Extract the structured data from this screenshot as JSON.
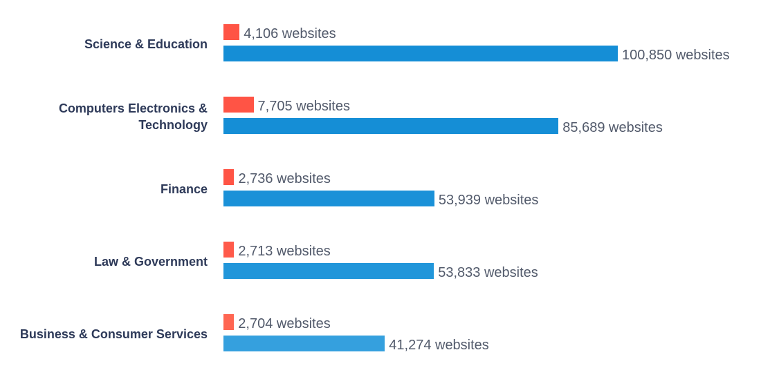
{
  "chart_data": {
    "type": "bar",
    "orientation": "horizontal",
    "categories": [
      "Science & Education",
      "Computers Electronics & Technology",
      "Finance",
      "Law & Government",
      "Business & Consumer Services"
    ],
    "category_lines": [
      [
        "Science & Education"
      ],
      [
        "Computers Electronics &",
        "Technology"
      ],
      [
        "Finance"
      ],
      [
        "Law & Government"
      ],
      [
        "Business & Consumer Services"
      ]
    ],
    "series": [
      {
        "values": [
          4106,
          7705,
          2736,
          2713,
          2704
        ],
        "labels": [
          "4,106 websites",
          "7,705 websites",
          "2,736 websites",
          "2,713 websites",
          "2,704 websites"
        ],
        "colors": [
          "#ff5445",
          "#ff5445",
          "#ff5445",
          "#ff5a4a",
          "#ff6652"
        ]
      },
      {
        "values": [
          100850,
          85689,
          53939,
          53833,
          41274
        ],
        "labels": [
          "100,850 websites",
          "85,689 websites",
          "53,939 websites",
          "53,833 websites",
          "41,274 websites"
        ],
        "colors": [
          "#158ed6",
          "#158ed6",
          "#1a91d8",
          "#2196da",
          "#35a0de"
        ]
      }
    ],
    "xlim": [
      0,
      100850
    ],
    "grid": false,
    "legend": "none"
  }
}
